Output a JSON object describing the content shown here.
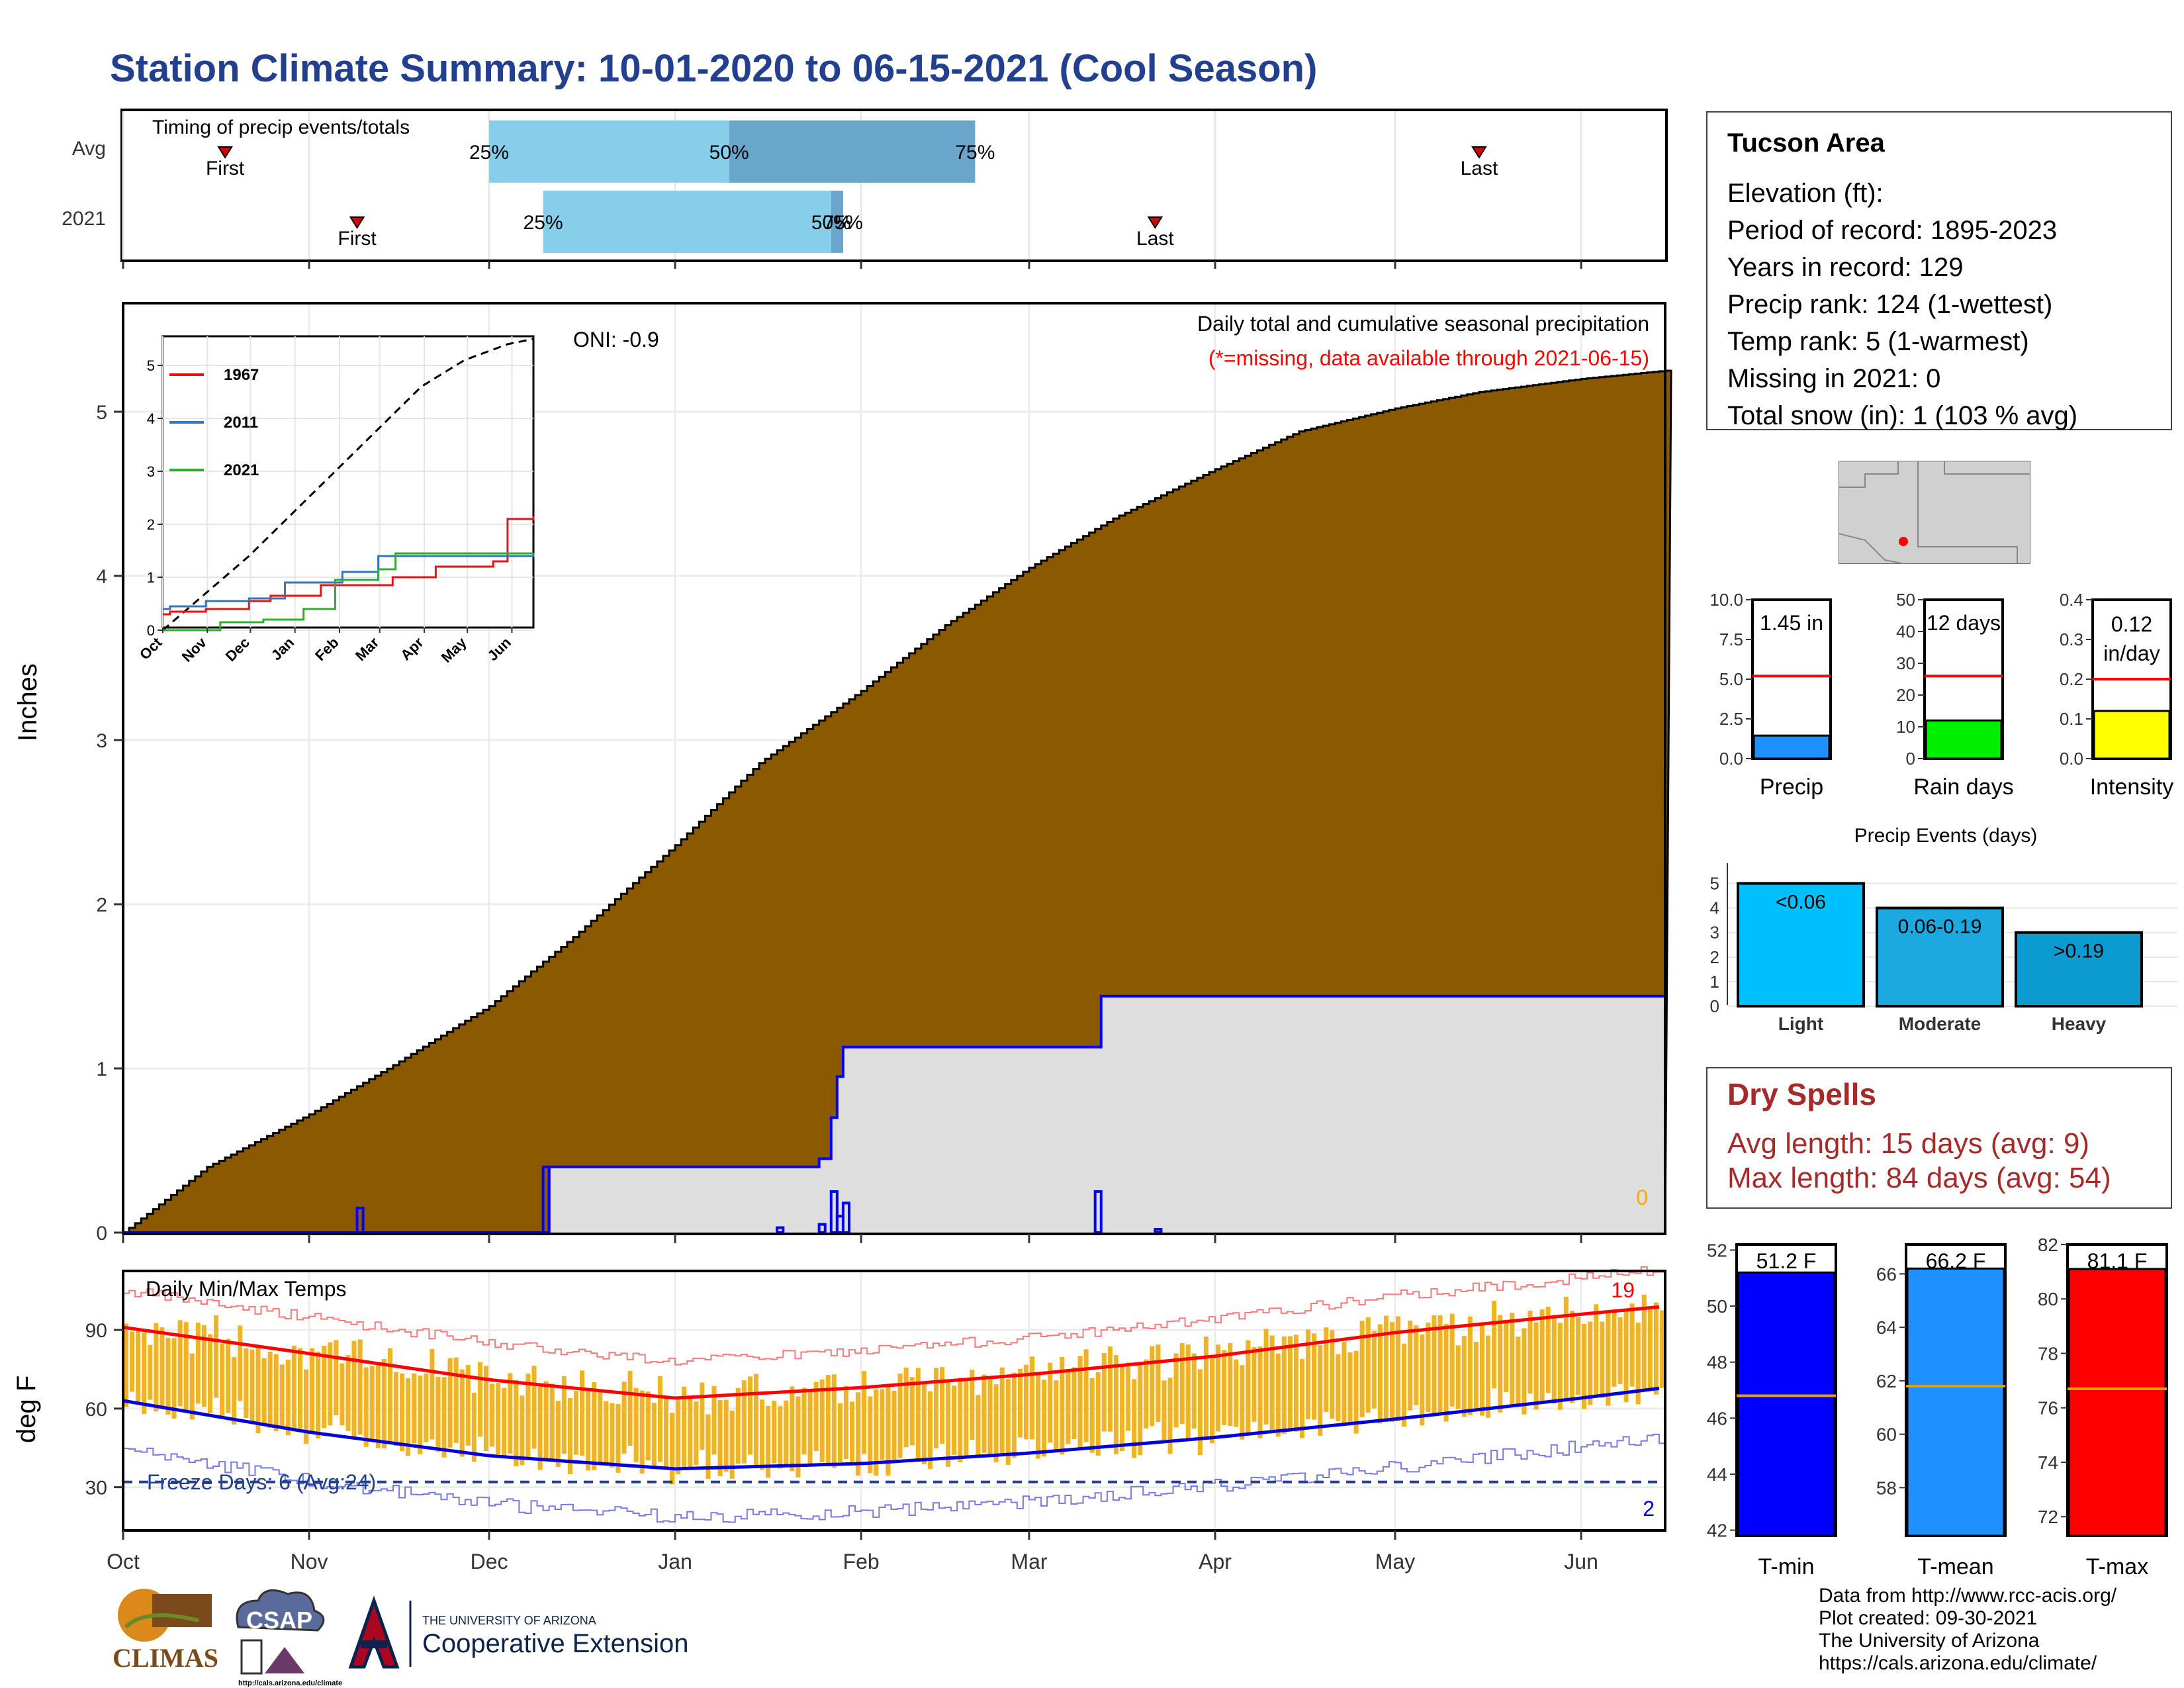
{
  "title": "Station Climate Summary: 10-01-2020 to 06-15-2021 (Cool Season)",
  "timing": {
    "label": "Timing of precip events/totals",
    "rows": [
      {
        "name": "Avg",
        "first_label": "First",
        "first": "Oct 18",
        "last_label": "Last",
        "last": "May 15",
        "p25_label": "25%",
        "p50_label": "50%",
        "p75_label": "75%",
        "p25": "Dec 1",
        "p50": "Jan 10",
        "p75": "Feb 20"
      },
      {
        "name": "2021",
        "first_label": "First",
        "first": "Nov 9",
        "last_label": "Last",
        "last": "Mar 22",
        "p25_label": "25%",
        "p50_label": "50%",
        "p75_label": "75%",
        "p25": "Dec 10",
        "p50": "Jan 27",
        "p75": "Jan 29"
      }
    ]
  },
  "precip_panel": {
    "ylabel": "Inches",
    "title_line": "Daily total and cumulative seasonal precipitation",
    "missing_note": "(*=missing, data available through 2021-06-15)",
    "oni": "ONI: -0.9",
    "missing_count": "0",
    "colors": {
      "avg_cum": "#8b5a00",
      "obs_cum_fill": "#dedede",
      "obs_line": "#0000ff"
    }
  },
  "inset": {
    "legend": [
      {
        "name": "1967",
        "color": "#ee1111"
      },
      {
        "name": "2011",
        "color": "#3377bb"
      },
      {
        "name": "2021",
        "color": "#33aa33"
      }
    ],
    "yticks": [
      "0",
      "1",
      "2",
      "3",
      "4",
      "5"
    ],
    "xticks": [
      "Oct",
      "Nov",
      "Dec",
      "Jan",
      "Feb",
      "Mar",
      "Apr",
      "May",
      "Jun"
    ]
  },
  "temp_panel": {
    "label": "Daily Min/Max Temps",
    "ylabel": "deg F",
    "freeze_days": "Freeze Days: 6 (Avg:24)",
    "count_hot": "19",
    "count_cold": "2",
    "colors": {
      "range_bar": "#f0b323",
      "avg_max": "#ff0000",
      "avg_min": "#0000dd",
      "rec_max": "#ff7777",
      "rec_min": "#7777ee"
    }
  },
  "station": {
    "name": "Tucson Area",
    "lines": [
      "Elevation (ft):",
      "Period of record: 1895-2023",
      "Years in record: 129",
      "Precip rank: 124 (1-wettest)",
      "Temp rank: 5 (1-warmest)",
      "Missing in 2021: 0",
      "Total snow (in): 1 (103 % avg)"
    ]
  },
  "gauges": [
    {
      "label": "Precip",
      "value_text": "1.45 in",
      "value": 1.45,
      "avg": 5.2,
      "max": 10,
      "ticks": [
        "0.0",
        "2.5",
        "5.0",
        "7.5",
        "10.0"
      ],
      "color": "#1e90ff"
    },
    {
      "label": "Rain days",
      "value_text": "12 days",
      "value": 12,
      "avg": 26,
      "max": 50,
      "ticks": [
        "0",
        "10",
        "20",
        "30",
        "40",
        "50"
      ],
      "color": "#00ee00"
    },
    {
      "label": "Intensity",
      "value_text": "0.12 in/day",
      "value": 0.12,
      "avg": 0.2,
      "max": 0.4,
      "ticks": [
        "0.0",
        "0.1",
        "0.2",
        "0.3",
        "0.4"
      ],
      "color": "#ffff00"
    }
  ],
  "precip_events": {
    "title": "Precip Events (days)",
    "yticks": [
      "0",
      "1",
      "2",
      "3",
      "4",
      "5"
    ],
    "bars": [
      {
        "category": "Light",
        "range": "<0.06",
        "value": 5,
        "color": "#00bfff"
      },
      {
        "category": "Moderate",
        "range": "0.06-0.19",
        "value": 4,
        "color": "#1ca9e0"
      },
      {
        "category": "Heavy",
        "range": ">0.19",
        "value": 3,
        "color": "#0a9bd0"
      }
    ]
  },
  "dry_spells": {
    "title": "Dry Spells",
    "lines": [
      "Avg length: 15 days (avg: 9)",
      "Max length: 84 days (avg: 54)"
    ]
  },
  "temp_gauges": [
    {
      "label": "T-min",
      "value_text": "51.2 F",
      "value": 51.2,
      "avg": 46.8,
      "ymin": 41.8,
      "ymax": 52.2,
      "ticks": [
        "42",
        "44",
        "46",
        "48",
        "50",
        "52"
      ],
      "color": "#0000ff"
    },
    {
      "label": "T-mean",
      "value_text": "66.2 F",
      "value": 66.2,
      "avg": 61.8,
      "ymin": 56.2,
      "ymax": 67.1,
      "ticks": [
        "58",
        "60",
        "62",
        "64",
        "66"
      ],
      "color": "#1e90ff"
    },
    {
      "label": "T-max",
      "value_text": "81.1 F",
      "value": 81.1,
      "avg": 76.7,
      "ymin": 71.3,
      "ymax": 82.0,
      "ticks": [
        "72",
        "74",
        "76",
        "78",
        "80",
        "82"
      ],
      "color": "#ff0000"
    }
  ],
  "footer": {
    "lines": [
      "Data from http://www.rcc-acis.org/",
      "Plot created: 09-30-2021",
      "The University of Arizona",
      "https://cals.arizona.edu/climate/"
    ],
    "logo_climas": "CLIMAS",
    "logo_csap": "CSAP",
    "logo_csap_url": "http://cals.arizona.edu/climate",
    "logo_ua_small": "THE UNIVERSITY OF ARIZONA",
    "logo_ua_big": "Cooperative Extension"
  },
  "chart_data": [
    {
      "type": "bar",
      "title": "Timing of precip events/totals",
      "categories": [
        "Avg",
        "2021"
      ],
      "series": [
        {
          "name": "First",
          "values": [
            "Oct 18",
            "Nov 9"
          ]
        },
        {
          "name": "25%",
          "values": [
            "Dec 1",
            "Dec 10"
          ]
        },
        {
          "name": "50%",
          "values": [
            "Jan 10",
            "Jan 27"
          ]
        },
        {
          "name": "75%",
          "values": [
            "Feb 20",
            "Jan 29"
          ]
        },
        {
          "name": "Last",
          "values": [
            "May 15",
            "Mar 22"
          ]
        }
      ]
    },
    {
      "type": "area",
      "title": "Daily total and cumulative seasonal precipitation",
      "ylabel": "Inches",
      "xlim": [
        "2020-10-01",
        "2021-06-15"
      ],
      "ylim": [
        0,
        5.5
      ],
      "xticks": [
        "Oct",
        "Nov",
        "Dec",
        "Jan",
        "Feb",
        "Mar",
        "Apr",
        "May",
        "Jun"
      ],
      "yticks": [
        0,
        1,
        2,
        3,
        4,
        5
      ],
      "series": [
        {
          "name": "Avg cumulative",
          "x": [
            "2020-10-01",
            "2020-10-15",
            "2020-11-01",
            "2020-11-15",
            "2020-12-01",
            "2020-12-15",
            "2021-01-01",
            "2021-01-15",
            "2021-02-01",
            "2021-02-15",
            "2021-03-01",
            "2021-03-15",
            "2021-04-01",
            "2021-04-15",
            "2021-05-01",
            "2021-05-15",
            "2021-06-01",
            "2021-06-15"
          ],
          "y": [
            0,
            0.4,
            0.72,
            1.02,
            1.38,
            1.8,
            2.36,
            2.86,
            3.3,
            3.7,
            4.05,
            4.35,
            4.65,
            4.88,
            5.02,
            5.12,
            5.2,
            5.25
          ]
        },
        {
          "name": "2021 cumulative",
          "x": [
            "2020-10-01",
            "2020-12-10",
            "2020-12-11",
            "2021-01-20",
            "2021-01-25",
            "2021-01-27",
            "2021-01-28",
            "2021-01-29",
            "2021-03-12",
            "2021-03-13",
            "2021-06-15"
          ],
          "y": [
            0,
            0,
            0.4,
            0.4,
            0.45,
            0.7,
            0.95,
            1.13,
            1.13,
            1.44,
            1.45
          ]
        },
        {
          "name": "2021 daily",
          "x": [
            "2020-11-09",
            "2020-12-10",
            "2021-01-18",
            "2021-01-25",
            "2021-01-27",
            "2021-01-28",
            "2021-01-29",
            "2021-03-12",
            "2021-03-22"
          ],
          "y": [
            0.15,
            0.4,
            0.03,
            0.05,
            0.25,
            0.1,
            0.18,
            0.25,
            0.02
          ]
        }
      ]
    },
    {
      "type": "line",
      "title": "",
      "ylim": [
        0,
        5.5
      ],
      "xticks": [
        "Oct",
        "Nov",
        "Dec",
        "Jan",
        "Feb",
        "Mar",
        "Apr",
        "May",
        "Jun"
      ],
      "yticks": [
        0,
        1,
        2,
        3,
        4,
        5
      ],
      "series": [
        {
          "name": "Avg (dashed)",
          "x": [
            0,
            30,
            60,
            90,
            120,
            150,
            180,
            210,
            240,
            258
          ],
          "y": [
            0,
            0.7,
            1.4,
            2.2,
            3.0,
            3.8,
            4.6,
            5.1,
            5.4,
            5.5
          ]
        },
        {
          "name": "1967",
          "x": [
            0,
            5,
            30,
            60,
            75,
            110,
            160,
            190,
            200,
            230,
            240,
            258
          ],
          "y": [
            0.3,
            0.35,
            0.4,
            0.55,
            0.65,
            0.85,
            1.0,
            1.2,
            1.2,
            1.3,
            2.1,
            2.15
          ]
        },
        {
          "name": "2011",
          "x": [
            0,
            5,
            30,
            60,
            85,
            125,
            150,
            258
          ],
          "y": [
            0.4,
            0.45,
            0.55,
            0.6,
            0.9,
            1.1,
            1.4,
            1.45
          ]
        },
        {
          "name": "2021",
          "x": [
            0,
            40,
            70,
            98,
            120,
            150,
            162,
            258
          ],
          "y": [
            0,
            0.15,
            0.2,
            0.4,
            0.95,
            1.15,
            1.45,
            1.45
          ]
        }
      ]
    },
    {
      "type": "line",
      "title": "Daily Min/Max Temps",
      "ylabel": "deg F",
      "ylim": [
        14,
        112
      ],
      "yticks": [
        30,
        60,
        90
      ],
      "xticks": [
        "Oct",
        "Nov",
        "Dec",
        "Jan",
        "Feb",
        "Mar",
        "Apr",
        "May",
        "Jun"
      ],
      "series": [
        {
          "name": "Avg max",
          "x": [
            "2020-10-01",
            "2020-11-01",
            "2020-12-01",
            "2021-01-01",
            "2021-02-01",
            "2021-03-01",
            "2021-04-01",
            "2021-05-01",
            "2021-06-01",
            "2021-06-15"
          ],
          "y": [
            91,
            81,
            71,
            64,
            68,
            73,
            80,
            89,
            96,
            99
          ]
        },
        {
          "name": "Avg min",
          "x": [
            "2020-10-01",
            "2020-11-01",
            "2020-12-01",
            "2021-01-01",
            "2021-02-01",
            "2021-03-01",
            "2021-04-01",
            "2021-05-01",
            "2021-06-01",
            "2021-06-15"
          ],
          "y": [
            63,
            51,
            42,
            37,
            39,
            43,
            49,
            56,
            64,
            68
          ]
        },
        {
          "name": "Freeze threshold",
          "x": [
            "2020-10-01",
            "2021-06-15"
          ],
          "y": [
            32,
            32
          ]
        }
      ]
    },
    {
      "type": "bar",
      "title": "Precip Events (days)",
      "categories": [
        "Light",
        "Moderate",
        "Heavy"
      ],
      "values": [
        5,
        4,
        3
      ],
      "ylim": [
        0,
        5.5
      ]
    },
    {
      "type": "bar",
      "title": "",
      "categories": [
        "Precip",
        "Rain days",
        "Intensity"
      ],
      "series": [
        {
          "name": "2021",
          "values": [
            1.45,
            12,
            0.12
          ]
        },
        {
          "name": "avg",
          "values": [
            5.2,
            26,
            0.2
          ]
        }
      ]
    },
    {
      "type": "bar",
      "title": "",
      "categories": [
        "T-min",
        "T-mean",
        "T-max"
      ],
      "series": [
        {
          "name": "2021",
          "values": [
            51.2,
            66.2,
            81.1
          ]
        },
        {
          "name": "avg",
          "values": [
            46.8,
            61.8,
            76.7
          ]
        }
      ]
    }
  ]
}
